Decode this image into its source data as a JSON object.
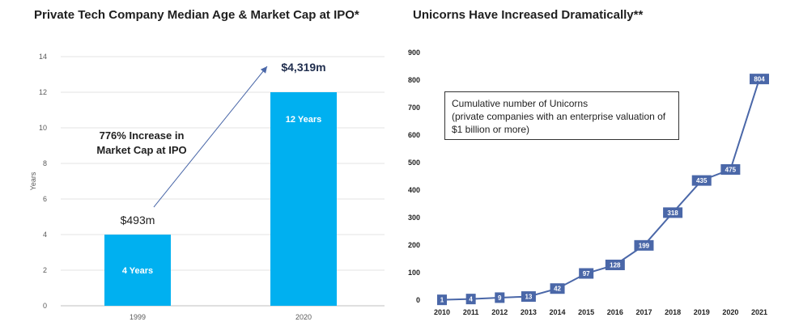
{
  "chart_data": [
    {
      "type": "bar",
      "title": "Private Tech Company Median Age & Market Cap at IPO*",
      "categories": [
        "1999",
        "2020"
      ],
      "values": [
        4,
        12
      ],
      "bar_labels": [
        "4 Years",
        "12 Years"
      ],
      "ylabel": "Years",
      "ylim": [
        0,
        14
      ],
      "yticks": [
        "0",
        "2",
        "4",
        "6",
        "8",
        "10",
        "12",
        "14"
      ],
      "grid": true,
      "color": "#00b0f0",
      "annotations": {
        "market_cap_1999": "$493m",
        "market_cap_2020": "$4,319m",
        "increase_line1": "776% Increase in",
        "increase_line2": "Market Cap at IPO"
      }
    },
    {
      "type": "line",
      "title": "Unicorns Have Increased Dramatically**",
      "x": [
        "2010",
        "2011",
        "2012",
        "2013",
        "2014",
        "2015",
        "2016",
        "2017",
        "2018",
        "2019",
        "2020",
        "2021"
      ],
      "values": [
        1,
        4,
        9,
        13,
        42,
        97,
        128,
        199,
        318,
        435,
        475,
        804
      ],
      "value_labels": [
        "1",
        "4",
        "9",
        "13",
        "42",
        "97",
        "128",
        "199",
        "318",
        "435",
        "475",
        "804"
      ],
      "ylim": [
        0,
        900
      ],
      "yticks": [
        "0",
        "100",
        "200",
        "300",
        "400",
        "500",
        "600",
        "700",
        "800",
        "900"
      ],
      "color": "#4a67a8",
      "legend": {
        "line1": "Cumulative number of Unicorns",
        "line2": "(private companies with an enterprise valuation of",
        "line3": "$1 billion or more)"
      }
    }
  ]
}
